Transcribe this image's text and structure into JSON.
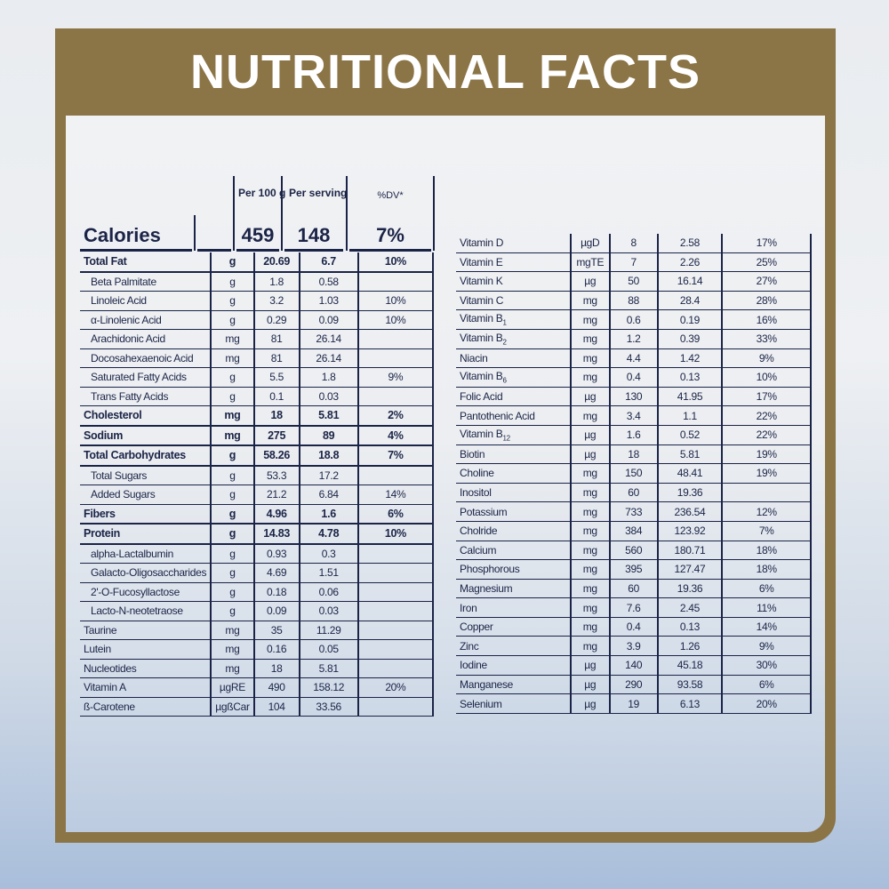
{
  "title": "NUTRITIONAL FACTS",
  "header": {
    "per100": "Per 100 g",
    "serving": "Per serving",
    "dv": "%DV*",
    "calories_label": "Calories",
    "cal_per100": "459",
    "cal_serving": "148",
    "cal_dv": "7%"
  },
  "left_rows": [
    {
      "name": "Total Fat",
      "unit": "g",
      "p100": "20.69",
      "serv": "6.7",
      "dv": "10%",
      "bold": true
    },
    {
      "name": "Beta Palmitate",
      "unit": "g",
      "p100": "1.8",
      "serv": "0.58",
      "dv": "",
      "indent": true
    },
    {
      "name": "Linoleic Acid",
      "unit": "g",
      "p100": "3.2",
      "serv": "1.03",
      "dv": "10%",
      "indent": true
    },
    {
      "name": "α-Linolenic Acid",
      "unit": "g",
      "p100": "0.29",
      "serv": "0.09",
      "dv": "10%",
      "indent": true
    },
    {
      "name": "Arachidonic Acid",
      "unit": "mg",
      "p100": "81",
      "serv": "26.14",
      "dv": "",
      "indent": true
    },
    {
      "name": "Docosahexaenoic Acid",
      "unit": "mg",
      "p100": "81",
      "serv": "26.14",
      "dv": "",
      "indent": true
    },
    {
      "name": "Saturated Fatty Acids",
      "unit": "g",
      "p100": "5.5",
      "serv": "1.8",
      "dv": "9%",
      "indent": true
    },
    {
      "name": "Trans Fatty Acids",
      "unit": "g",
      "p100": "0.1",
      "serv": "0.03",
      "dv": "",
      "indent": true
    },
    {
      "name": "Cholesterol",
      "unit": "mg",
      "p100": "18",
      "serv": "5.81",
      "dv": "2%",
      "bold": true
    },
    {
      "name": "Sodium",
      "unit": "mg",
      "p100": "275",
      "serv": "89",
      "dv": "4%",
      "bold": true
    },
    {
      "name": "Total Carbohydrates",
      "unit": "g",
      "p100": "58.26",
      "serv": "18.8",
      "dv": "7%",
      "bold": true
    },
    {
      "name": "Total Sugars",
      "unit": "g",
      "p100": "53.3",
      "serv": "17.2",
      "dv": "",
      "indent": true
    },
    {
      "name": "Added Sugars",
      "unit": "g",
      "p100": "21.2",
      "serv": "6.84",
      "dv": "14%",
      "indent": true
    },
    {
      "name": "Fibers",
      "unit": "g",
      "p100": "4.96",
      "serv": "1.6",
      "dv": "6%",
      "bold": true
    },
    {
      "name": "Protein",
      "unit": "g",
      "p100": "14.83",
      "serv": "4.78",
      "dv": "10%",
      "bold": true
    },
    {
      "name": "alpha-Lactalbumin",
      "unit": "g",
      "p100": "0.93",
      "serv": "0.3",
      "dv": "",
      "indent": true
    },
    {
      "name": "Galacto-Oligosaccharides",
      "unit": "g",
      "p100": "4.69",
      "serv": "1.51",
      "dv": "",
      "indent": true
    },
    {
      "name": "2'-O-Fucosyllactose",
      "unit": "g",
      "p100": "0.18",
      "serv": "0.06",
      "dv": "",
      "indent": true
    },
    {
      "name": "Lacto-N-neotetraose",
      "unit": "g",
      "p100": "0.09",
      "serv": "0.03",
      "dv": "",
      "indent": true
    },
    {
      "name": "Taurine",
      "unit": "mg",
      "p100": "35",
      "serv": "11.29",
      "dv": ""
    },
    {
      "name": "Lutein",
      "unit": "mg",
      "p100": "0.16",
      "serv": "0.05",
      "dv": ""
    },
    {
      "name": "Nucleotides",
      "unit": "mg",
      "p100": "18",
      "serv": "5.81",
      "dv": ""
    },
    {
      "name": "Vitamin A",
      "unit": "µgRE",
      "p100": "490",
      "serv": "158.12",
      "dv": "20%"
    },
    {
      "name": "ß-Carotene",
      "unit": "µgßCar",
      "p100": "104",
      "serv": "33.56",
      "dv": ""
    }
  ],
  "right_rows": [
    {
      "name": "Vitamin D",
      "unit": "µgD",
      "p100": "8",
      "serv": "2.58",
      "dv": "17%"
    },
    {
      "name": "Vitamin E",
      "unit": "mgTE",
      "p100": "7",
      "serv": "2.26",
      "dv": "25%"
    },
    {
      "name": "Vitamin K",
      "unit": "µg",
      "p100": "50",
      "serv": "16.14",
      "dv": "27%"
    },
    {
      "name": "Vitamin C",
      "unit": "mg",
      "p100": "88",
      "serv": "28.4",
      "dv": "28%"
    },
    {
      "name": "Vitamin B",
      "sub": "1",
      "unit": "mg",
      "p100": "0.6",
      "serv": "0.19",
      "dv": "16%"
    },
    {
      "name": "Vitamin B",
      "sub": "2",
      "unit": "mg",
      "p100": "1.2",
      "serv": "0.39",
      "dv": "33%"
    },
    {
      "name": "Niacin",
      "unit": "mg",
      "p100": "4.4",
      "serv": "1.42",
      "dv": "9%"
    },
    {
      "name": "Vitamin B",
      "sub": "6",
      "unit": "mg",
      "p100": "0.4",
      "serv": "0.13",
      "dv": "10%"
    },
    {
      "name": "Folic Acid",
      "unit": "µg",
      "p100": "130",
      "serv": "41.95",
      "dv": "17%"
    },
    {
      "name": "Pantothenic Acid",
      "unit": "mg",
      "p100": "3.4",
      "serv": "1.1",
      "dv": "22%"
    },
    {
      "name": "Vitamin B",
      "sub": "12",
      "unit": "µg",
      "p100": "1.6",
      "serv": "0.52",
      "dv": "22%"
    },
    {
      "name": "Biotin",
      "unit": "µg",
      "p100": "18",
      "serv": "5.81",
      "dv": "19%"
    },
    {
      "name": "Choline",
      "unit": "mg",
      "p100": "150",
      "serv": "48.41",
      "dv": "19%"
    },
    {
      "name": "Inositol",
      "unit": "mg",
      "p100": "60",
      "serv": "19.36",
      "dv": ""
    },
    {
      "name": "Potassium",
      "unit": "mg",
      "p100": "733",
      "serv": "236.54",
      "dv": "12%"
    },
    {
      "name": "Cholride",
      "unit": "mg",
      "p100": "384",
      "serv": "123.92",
      "dv": "7%"
    },
    {
      "name": "Calcium",
      "unit": "mg",
      "p100": "560",
      "serv": "180.71",
      "dv": "18%"
    },
    {
      "name": "Phosphorous",
      "unit": "mg",
      "p100": "395",
      "serv": "127.47",
      "dv": "18%"
    },
    {
      "name": "Magnesium",
      "unit": "mg",
      "p100": "60",
      "serv": "19.36",
      "dv": "6%"
    },
    {
      "name": "Iron",
      "unit": "mg",
      "p100": "7.6",
      "serv": "2.45",
      "dv": "11%"
    },
    {
      "name": "Copper",
      "unit": "mg",
      "p100": "0.4",
      "serv": "0.13",
      "dv": "14%"
    },
    {
      "name": "Zinc",
      "unit": "mg",
      "p100": "3.9",
      "serv": "1.26",
      "dv": "9%"
    },
    {
      "name": "Iodine",
      "unit": "µg",
      "p100": "140",
      "serv": "45.18",
      "dv": "30%"
    },
    {
      "name": "Manganese",
      "unit": "µg",
      "p100": "290",
      "serv": "93.58",
      "dv": "6%"
    },
    {
      "name": "Selenium",
      "unit": "µg",
      "p100": "19",
      "serv": "6.13",
      "dv": "20%"
    }
  ]
}
